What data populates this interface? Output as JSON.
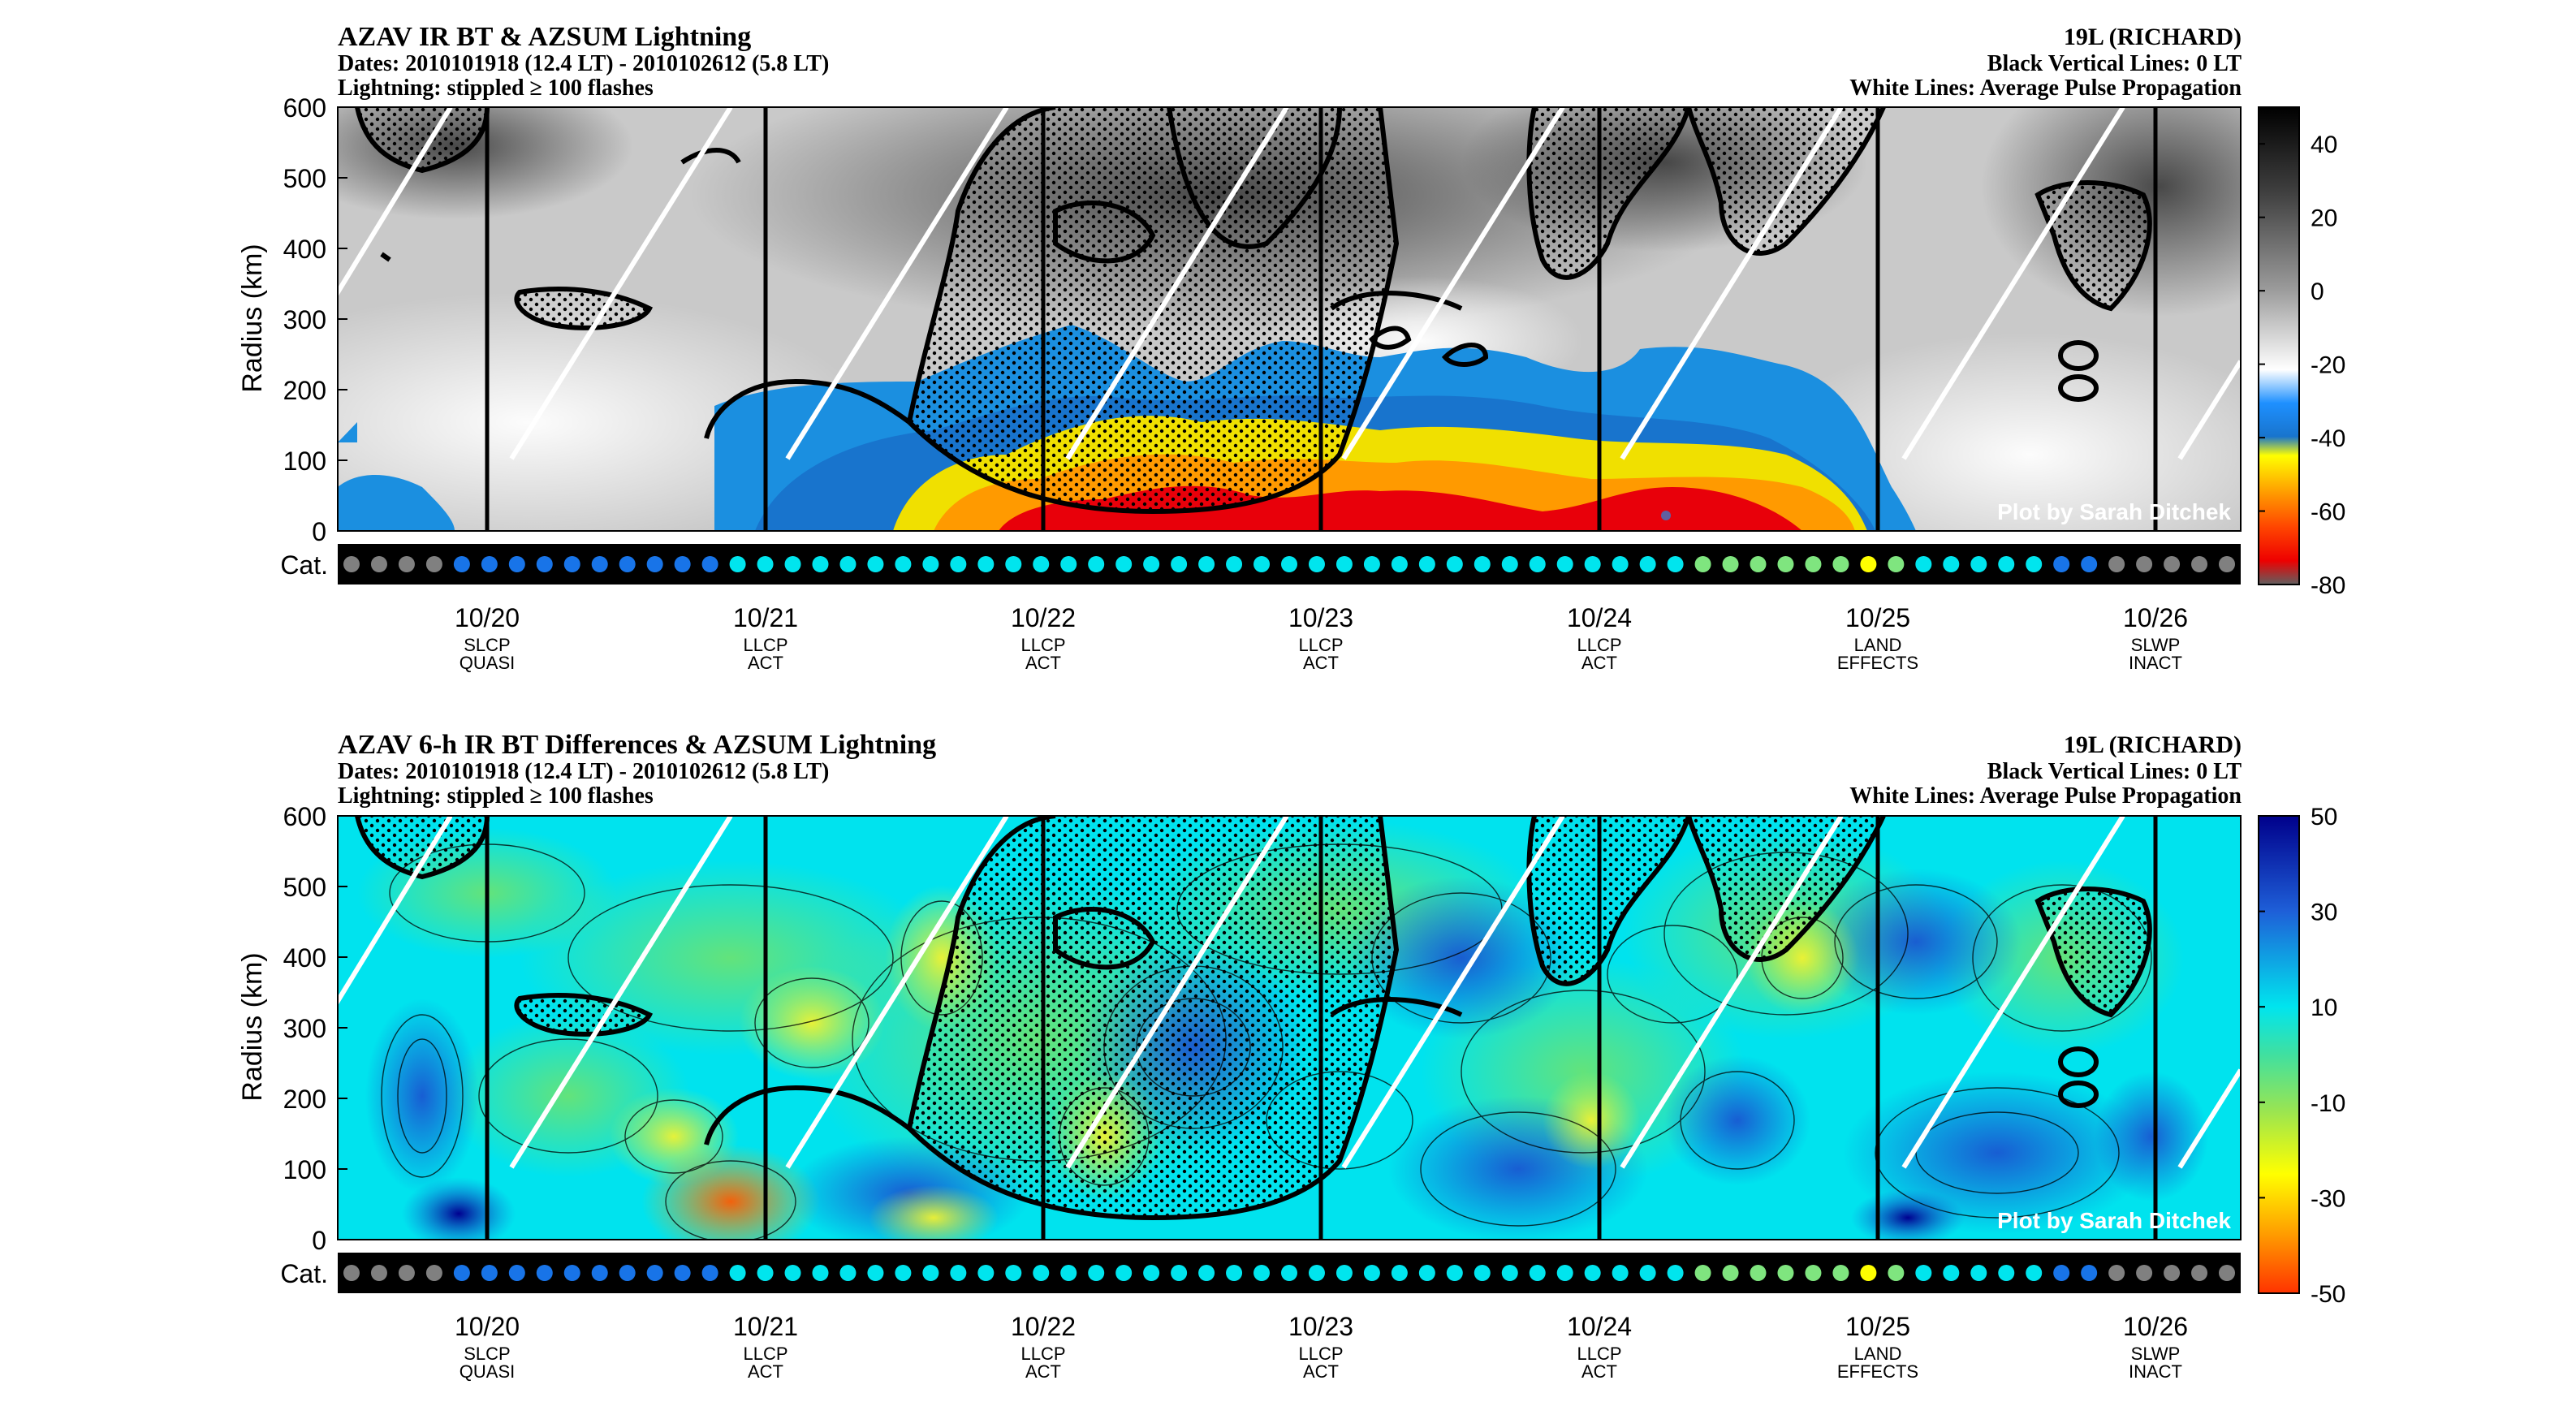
{
  "panels": [
    {
      "title": "AZAV IR BT & AZSUM Lightning",
      "dates": "Dates: 2010101918 (12.4 LT) - 2010102612 (5.8 LT)",
      "lightning_note": "Lightning: stippled ≥ 100 flashes",
      "storm": "19L (RICHARD)",
      "black_lines_note": "Black Vertical Lines: 0 LT",
      "white_lines_note": "White Lines: Average Pulse Propagation",
      "credit": "Plot by Sarah Ditchek",
      "cat_label": "Cat.",
      "colorbar_ticks": [
        "40",
        "20",
        "0",
        "-20",
        "-40",
        "-60",
        "-80"
      ]
    },
    {
      "title": "AZAV 6-h IR BT Differences & AZSUM Lightning",
      "dates": "Dates: 2010101918 (12.4 LT) - 2010102612 (5.8 LT)",
      "lightning_note": "Lightning: stippled ≥ 100 flashes",
      "storm": "19L (RICHARD)",
      "black_lines_note": "Black Vertical Lines: 0 LT",
      "white_lines_note": "White Lines: Average Pulse Propagation",
      "credit": "Plot by Sarah Ditchek",
      "cat_label": "Cat.",
      "colorbar_ticks": [
        "50",
        "30",
        "10",
        "-10",
        "-30",
        "-50"
      ]
    }
  ],
  "chart_data": [
    {
      "type": "heatmap",
      "title": "AZAV IR BT & AZSUM Lightning",
      "ylabel": "Radius (km)",
      "xlabel": "",
      "ylim": [
        0,
        600
      ],
      "yticks": [
        0,
        100,
        200,
        300,
        400,
        500,
        600
      ],
      "colorbar_range": [
        -80,
        50
      ],
      "colorbar_ticks": [
        40,
        20,
        0,
        -20,
        -40,
        -60,
        -80
      ],
      "x_dates": [
        "10/20",
        "10/21",
        "10/22",
        "10/23",
        "10/24",
        "10/25",
        "10/26"
      ],
      "x_sublabels": [
        [
          "SLCP",
          "QUASI"
        ],
        [
          "LLCP",
          "ACT"
        ],
        [
          "LLCP",
          "ACT"
        ],
        [
          "LLCP",
          "ACT"
        ],
        [
          "LLCP",
          "ACT"
        ],
        [
          "LAND",
          "EFFECTS"
        ],
        [
          "SLWP",
          "INACT"
        ]
      ]
    },
    {
      "type": "heatmap",
      "title": "AZAV 6-h IR BT Differences & AZSUM Lightning",
      "ylabel": "Radius (km)",
      "xlabel": "",
      "ylim": [
        0,
        600
      ],
      "yticks": [
        0,
        100,
        200,
        300,
        400,
        500,
        600
      ],
      "colorbar_range": [
        -50,
        50
      ],
      "colorbar_ticks": [
        50,
        30,
        10,
        -10,
        -30,
        -50
      ],
      "x_dates": [
        "10/20",
        "10/21",
        "10/22",
        "10/23",
        "10/24",
        "10/25",
        "10/26"
      ],
      "x_sublabels": [
        [
          "SLCP",
          "QUASI"
        ],
        [
          "LLCP",
          "ACT"
        ],
        [
          "LLCP",
          "ACT"
        ],
        [
          "LLCP",
          "ACT"
        ],
        [
          "LLCP",
          "ACT"
        ],
        [
          "LAND",
          "EFFECTS"
        ],
        [
          "SLWP",
          "INACT"
        ]
      ]
    }
  ],
  "category_dots": [
    "#808080",
    "#808080",
    "#808080",
    "#808080",
    "#1874e8",
    "#1874e8",
    "#1874e8",
    "#1874e8",
    "#1874e8",
    "#1874e8",
    "#1874e8",
    "#1874e8",
    "#1874e8",
    "#1874e8",
    "#00e5ee",
    "#00e5ee",
    "#00e5ee",
    "#00e5ee",
    "#00e5ee",
    "#00e5ee",
    "#00e5ee",
    "#00e5ee",
    "#00e5ee",
    "#00e5ee",
    "#00e5ee",
    "#00e5ee",
    "#00e5ee",
    "#00e5ee",
    "#00e5ee",
    "#00e5ee",
    "#00e5ee",
    "#00e5ee",
    "#00e5ee",
    "#00e5ee",
    "#00e5ee",
    "#00e5ee",
    "#00e5ee",
    "#00e5ee",
    "#00e5ee",
    "#00e5ee",
    "#00e5ee",
    "#00e5ee",
    "#00e5ee",
    "#00e5ee",
    "#00e5ee",
    "#00e5ee",
    "#00e5ee",
    "#00e5ee",
    "#00e5ee",
    "#7fe57f",
    "#7fe57f",
    "#7fe57f",
    "#7fe57f",
    "#7fe57f",
    "#7fe57f",
    "#ffff00",
    "#7fe57f",
    "#00e5ee",
    "#00e5ee",
    "#00e5ee",
    "#00e5ee",
    "#00e5ee",
    "#1874e8",
    "#1874e8",
    "#808080",
    "#808080",
    "#808080",
    "#808080",
    "#808080"
  ],
  "colors": {
    "lightning_contour": "#000000",
    "pulse_lines": "#ffffff",
    "day_lines": "#000000"
  }
}
